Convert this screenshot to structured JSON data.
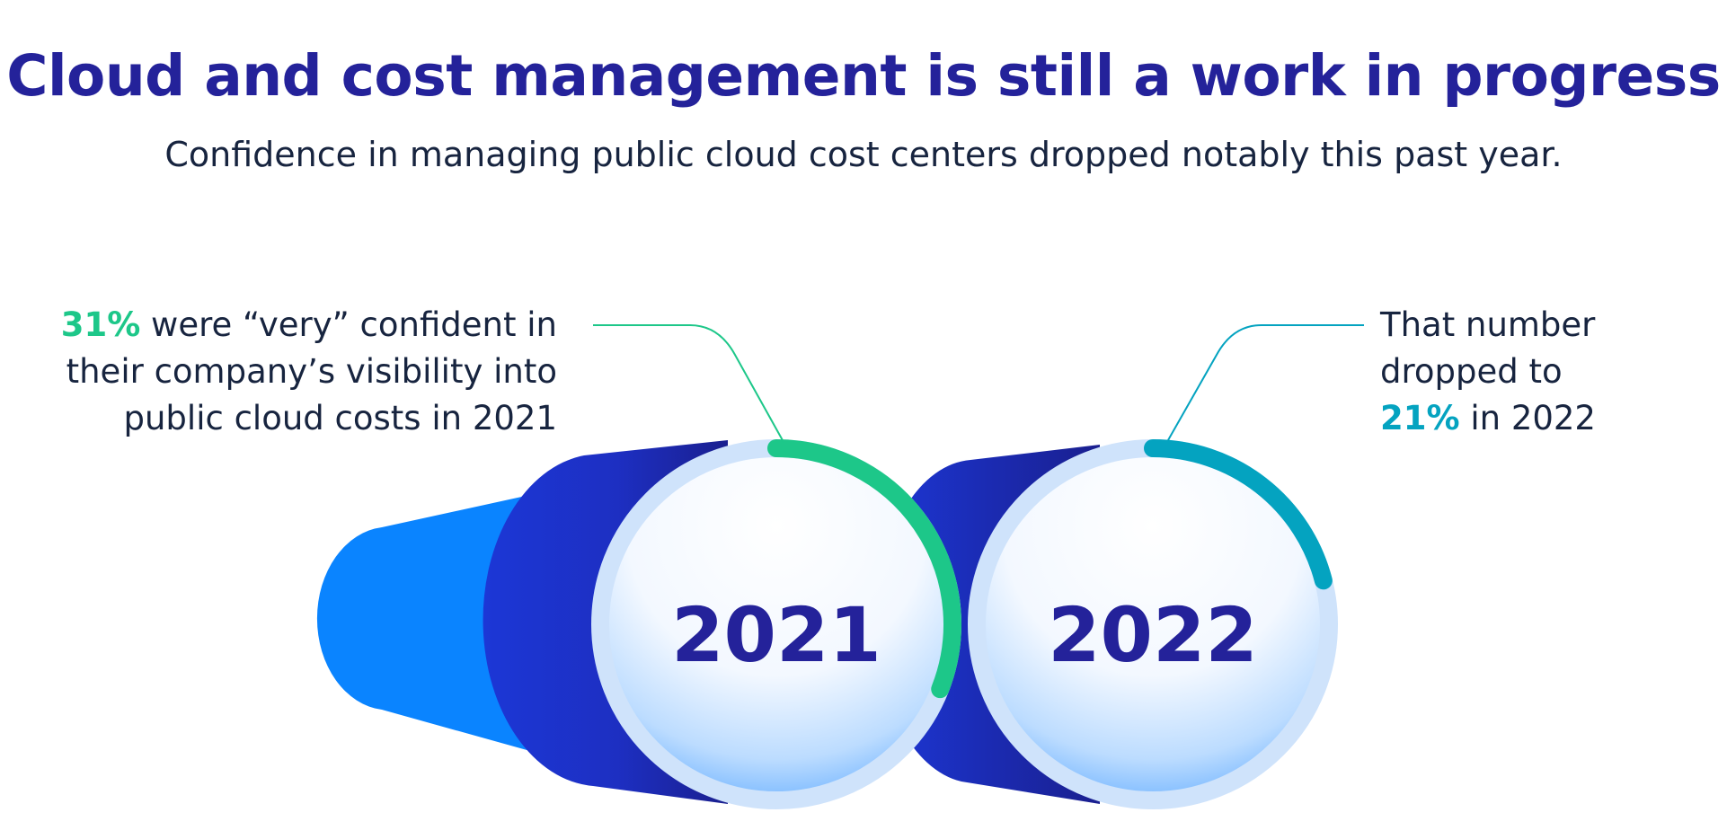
{
  "title": "Cloud and cost management is still a work in progress",
  "subtitle": "Confidence in managing public cloud cost centers dropped notably this past year.",
  "callouts": {
    "left": {
      "pct": "31%",
      "text_line1": " were “very” confident in",
      "text_line2": "their company’s visibility into",
      "text_line3": "public cloud costs in 2021"
    },
    "right": {
      "text_line1": "That number",
      "text_line2": "dropped to",
      "pct": "21%",
      "text_line3": " in 2022"
    }
  },
  "colors": {
    "title": "#24229a",
    "pct_2021": "#1dc789",
    "pct_2022": "#04a3c0",
    "cylinder_light": "#0a84ff",
    "cylinder_dark": "#1a2fc9",
    "ring": "#cfe3fb"
  },
  "chart_data": {
    "type": "radial-progress",
    "categories": [
      "2021",
      "2022"
    ],
    "values": [
      31,
      21
    ],
    "unit": "%",
    "title": "Cloud and cost management is still a work in progress",
    "subtitle": "Confidence in managing public cloud cost centers dropped notably this past year."
  }
}
